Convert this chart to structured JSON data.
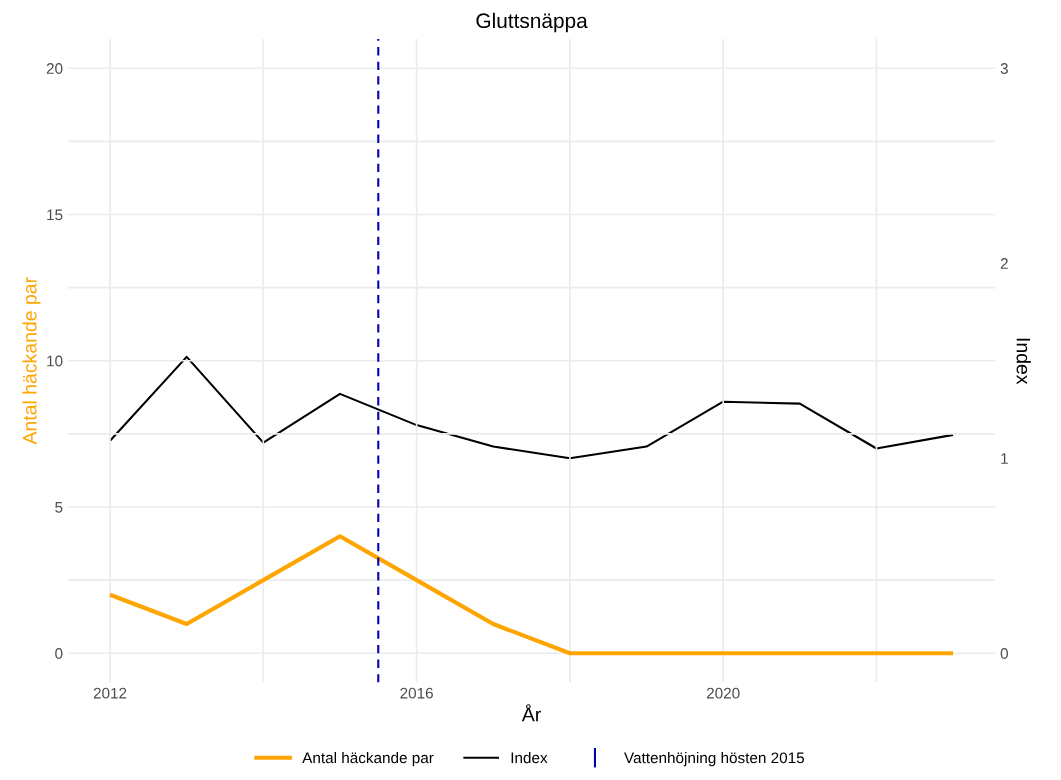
{
  "chart_data": {
    "type": "line",
    "title": "Gluttsnäppa",
    "xlabel": "År",
    "ylabel": "Antal häckande par",
    "y2label": "Index",
    "x": [
      2012,
      2013,
      2014,
      2015,
      2016,
      2017,
      2018,
      2019,
      2020,
      2021,
      2022,
      2023
    ],
    "series": [
      {
        "name": "Antal häckande par",
        "color": "#ffa500",
        "values": [
          2,
          1,
          2.5,
          4,
          2.5,
          1,
          0,
          0,
          0,
          0,
          0,
          0
        ]
      },
      {
        "name": "Index",
        "color": "#000000",
        "axis": "y2",
        "values": [
          1.09,
          1.52,
          1.08,
          1.33,
          1.17,
          1.06,
          1.0,
          1.06,
          1.29,
          1.28,
          1.05,
          1.12
        ]
      }
    ],
    "xlim": [
      2011.45,
      2023.55
    ],
    "xticks": [
      2012,
      {
        "value": 2014,
        "label": null
      },
      2016,
      {
        "value": 2018,
        "label": null
      },
      2020,
      {
        "value": 2022,
        "label": null
      }
    ],
    "ylim": [
      -1,
      21
    ],
    "yticks": [
      0,
      {
        "value": 2.5,
        "label": null
      },
      5,
      {
        "value": 7.5,
        "label": null
      },
      10,
      {
        "value": 12.5,
        "label": null
      },
      15,
      {
        "value": 17.5,
        "label": null
      },
      20
    ],
    "y2lim": [
      -0.15,
      3.15
    ],
    "y2ticks": [
      0,
      1,
      2,
      3
    ],
    "ref_lines": [
      {
        "axis": "x",
        "value": 2015.5,
        "label": "Vattenhöjning hösten 2015",
        "color": "#0000b3",
        "line_style": "dashed"
      }
    ],
    "grid": true,
    "legend": "bottom"
  }
}
